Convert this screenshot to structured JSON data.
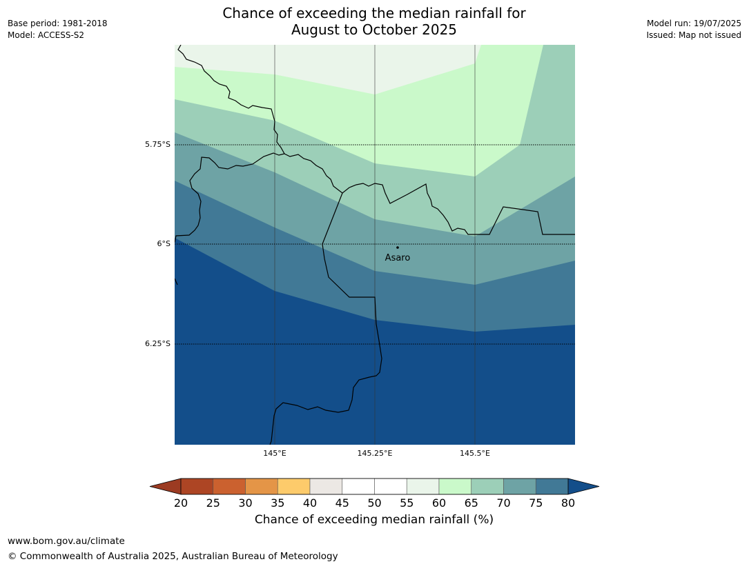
{
  "header": {
    "title_line1": "Chance of exceeding the median rainfall for",
    "title_line2": "August to October 2025",
    "base_period": "Base period: 1981-2018",
    "model": "Model: ACCESS-S2",
    "model_run": "Model run: 19/07/2025",
    "issued": "Issued: Map not issued"
  },
  "map": {
    "latitude_labels": [
      "5.75°S",
      "6°S",
      "6.25°S"
    ],
    "longitude_labels": [
      "145°E",
      "145.25°E",
      "145.5°E"
    ],
    "place": {
      "name": "Asaro"
    },
    "contour_bands_percent": [
      "55-60",
      "60-65",
      "65-70",
      "70-75",
      "75-80",
      ">80"
    ]
  },
  "colorbar": {
    "label": "Chance of exceeding median rainfall (%)",
    "ticks": [
      "20",
      "25",
      "30",
      "35",
      "40",
      "45",
      "50",
      "55",
      "60",
      "65",
      "70",
      "75",
      "80"
    ],
    "colors": [
      "#ad4524",
      "#cb612f",
      "#e49547",
      "#fdcb6b",
      "#ece8e4",
      "#ffffff",
      "#ffffff",
      "#eaf5ea",
      "#caf9ca",
      "#9ccfb8",
      "#6ea3a5",
      "#417996"
    ],
    "under_color": "#9c3b22",
    "over_color": "#134e8a"
  },
  "footer": {
    "url": "www.bom.gov.au/climate",
    "copyright": "© Commonwealth of Australia 2025, Australian Bureau of Meteorology"
  }
}
